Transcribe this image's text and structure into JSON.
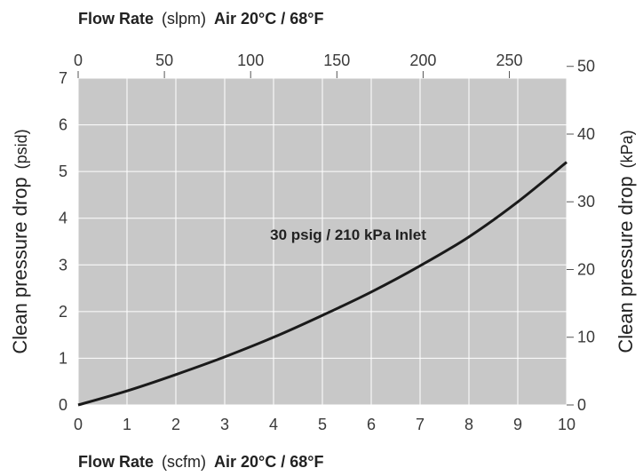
{
  "chart_data": {
    "type": "line",
    "title": "",
    "annotation": "30 psig / 210 kPa Inlet",
    "x_bottom": {
      "label_bold_1": "Flow Rate",
      "label_unit": "(scfm)",
      "label_bold_2": "Air 20°C / 68°F",
      "range": [
        0,
        10
      ],
      "ticks": [
        "0",
        "1",
        "2",
        "3",
        "4",
        "5",
        "6",
        "7",
        "8",
        "9",
        "10"
      ]
    },
    "x_top": {
      "label_bold_1": "Flow Rate",
      "label_unit": "(slpm)",
      "label_bold_2": "Air 20°C / 68°F",
      "range": [
        0,
        283.2
      ],
      "ticks": [
        "0",
        "50",
        "100",
        "150",
        "200",
        "250"
      ]
    },
    "y_left": {
      "label_bold": "Clean pressure drop",
      "label_unit": "(psid)",
      "range": [
        0,
        7
      ],
      "ticks": [
        "0",
        "1",
        "2",
        "3",
        "4",
        "5",
        "6",
        "7"
      ]
    },
    "y_right": {
      "label_bold": "Clean pressure drop",
      "label_unit": "(kPa)",
      "range": [
        0,
        48.26
      ],
      "ticks": [
        "0",
        "10",
        "20",
        "30",
        "40",
        "50"
      ]
    },
    "grid": true,
    "series": [
      {
        "x": [
          0,
          1,
          2,
          3,
          4,
          5,
          6,
          7,
          8,
          9,
          10
        ],
        "y": [
          0,
          0.3,
          0.65,
          1.03,
          1.45,
          1.92,
          2.42,
          2.98,
          3.6,
          4.35,
          5.2
        ]
      }
    ],
    "colors": {
      "plot_bg": "#c8c8c8",
      "grid": "#ffffff",
      "line": "#1a1a1a"
    }
  }
}
